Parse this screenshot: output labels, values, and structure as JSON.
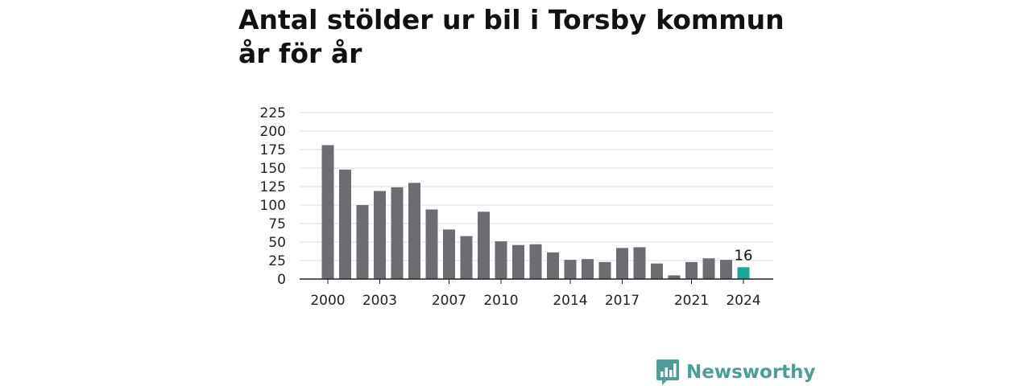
{
  "chart_data": {
    "type": "bar",
    "title": "Antal stölder ur bil i Torsby kommun år för år",
    "xlabel": "",
    "ylabel": "",
    "categories": [
      "2000",
      "2001",
      "2002",
      "2003",
      "2004",
      "2005",
      "2006",
      "2007",
      "2008",
      "2009",
      "2010",
      "2011",
      "2012",
      "2013",
      "2014",
      "2015",
      "2016",
      "2017",
      "2018",
      "2019",
      "2020",
      "2021",
      "2022",
      "2023",
      "2024"
    ],
    "values": [
      181,
      148,
      100,
      119,
      124,
      130,
      94,
      67,
      58,
      91,
      51,
      46,
      47,
      36,
      26,
      27,
      23,
      42,
      43,
      21,
      5,
      23,
      28,
      26,
      16
    ],
    "x_tick_labels": [
      "2000",
      "2003",
      "2007",
      "2010",
      "2014",
      "2017",
      "2021",
      "2024"
    ],
    "y_ticks": [
      0,
      25,
      50,
      75,
      100,
      125,
      150,
      175,
      200,
      225
    ],
    "ylim": [
      0,
      225
    ],
    "grid": true,
    "highlight": {
      "category": "2024",
      "label": "16"
    },
    "colors": {
      "bar": "#6d6c72",
      "highlight": "#19a79a",
      "grid": "#dddddd",
      "axis": "#222222"
    }
  },
  "brand": {
    "name": "Newsworthy",
    "icon": "newsworthy-logo-icon",
    "color": "#4a9e98"
  }
}
